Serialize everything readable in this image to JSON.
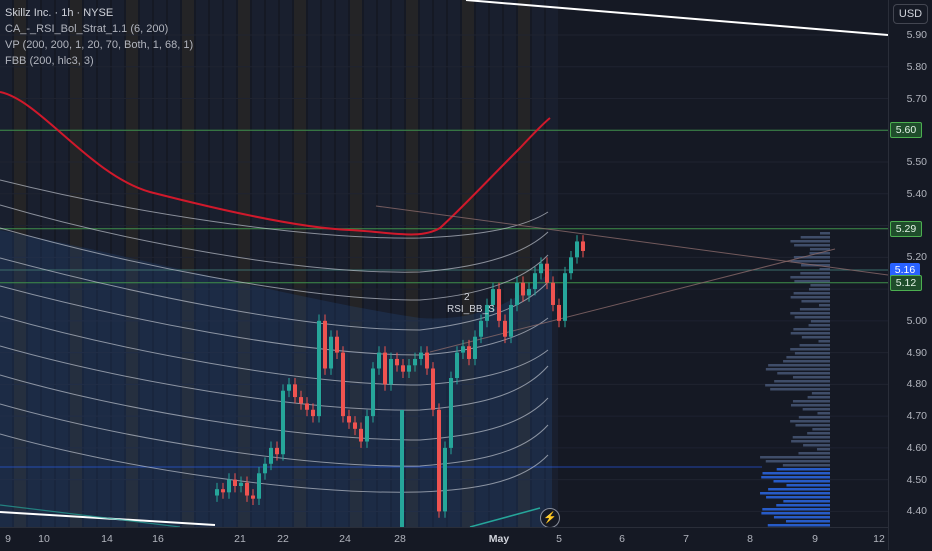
{
  "legend": {
    "title": "Skillz Inc. · 1h · NYSE",
    "indicators": [
      "CA_-_RSI_Bol_Strat_1.1 (6, 200)",
      "VP (200, 200, 1, 20, 70, Both, 1, 68, 1)",
      "FBB (200, hlc3, 3)"
    ]
  },
  "currency": "USD",
  "price_axis": {
    "ticks": [
      "5.90",
      "5.80",
      "5.70",
      "5.60",
      "5.50",
      "5.40",
      "5.29",
      "5.20",
      "5.16",
      "5.12",
      "5.00",
      "4.90",
      "4.80",
      "4.70",
      "4.60",
      "4.50",
      "4.40"
    ],
    "badges": [
      {
        "label": "5.60",
        "kind": "green"
      },
      {
        "label": "5.29",
        "kind": "green"
      },
      {
        "label": "5.16",
        "kind": "blue"
      },
      {
        "label": "5.12",
        "kind": "green"
      }
    ]
  },
  "time_axis": {
    "ticks": [
      {
        "label": "9",
        "bold": false
      },
      {
        "label": "10",
        "bold": false
      },
      {
        "label": "14",
        "bold": false
      },
      {
        "label": "16",
        "bold": false
      },
      {
        "label": "21",
        "bold": false
      },
      {
        "label": "22",
        "bold": false
      },
      {
        "label": "24",
        "bold": false
      },
      {
        "label": "28",
        "bold": false
      },
      {
        "label": "May",
        "bold": true
      },
      {
        "label": "5",
        "bold": false
      },
      {
        "label": "6",
        "bold": false
      },
      {
        "label": "7",
        "bold": false
      },
      {
        "label": "8",
        "bold": false
      },
      {
        "label": "9",
        "bold": false
      },
      {
        "label": "12",
        "bold": false
      }
    ]
  },
  "signals": {
    "count_label": "2",
    "name": "RSI_BB_S"
  },
  "colors": {
    "up": "#26a69a",
    "down": "#ef5350",
    "ma": "#d0192b",
    "band": "#c8ccd6",
    "hline": "#3f8f4a",
    "badge_green": "#1f4d2b",
    "badge_blue": "#2962ff",
    "vp": "#4a5a7a",
    "vp_va": "#2c6cf0"
  },
  "icons": [
    "flash-icon"
  ]
}
